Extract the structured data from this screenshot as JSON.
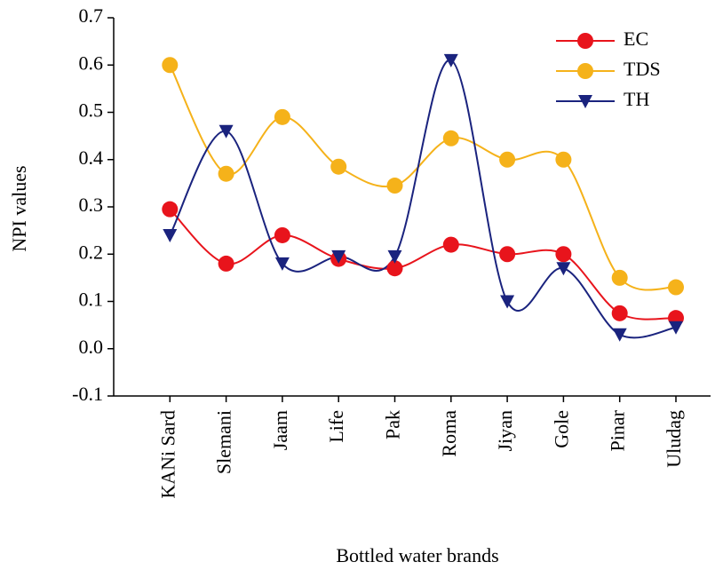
{
  "chart_data": {
    "type": "line",
    "x_label": "Bottled water brands",
    "y_label": "NPI values",
    "categories": [
      "KANi Sard",
      "Slemani",
      "Jaam",
      "Life",
      "Pak",
      "Roma",
      "Jiyan",
      "Gole",
      "Pinar",
      "Uludag"
    ],
    "series": [
      {
        "name": "EC",
        "color": "#e8141c",
        "marker": "circle",
        "values": [
          0.295,
          0.18,
          0.24,
          0.19,
          0.17,
          0.22,
          0.2,
          0.2,
          0.075,
          0.065
        ]
      },
      {
        "name": "TDS",
        "color": "#f5b21a",
        "marker": "circle",
        "values": [
          0.6,
          0.37,
          0.49,
          0.385,
          0.345,
          0.445,
          0.4,
          0.4,
          0.15,
          0.13
        ]
      },
      {
        "name": "TH",
        "color": "#1a237e",
        "marker": "triangle-down",
        "values": [
          0.24,
          0.46,
          0.18,
          0.195,
          0.195,
          0.61,
          0.1,
          0.17,
          0.03,
          0.045
        ]
      }
    ],
    "ylim": [
      -0.1,
      0.7
    ],
    "yticks": [
      -0.1,
      {
        "value": 0,
        "label": "0.0"
      },
      0.1,
      0.2,
      0.3,
      0.4,
      0.5,
      0.6,
      0.7
    ],
    "legend": "top-right"
  }
}
